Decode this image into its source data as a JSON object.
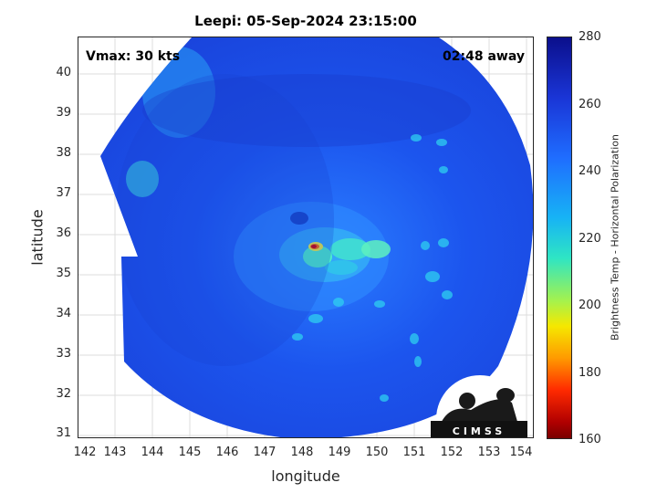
{
  "title": "Leepi: 05-Sep-2024 23:15:00",
  "vmax_label": "Vmax: 30 kts",
  "time_away_label": "02:48 away",
  "x_axis": {
    "label": "longitude",
    "ticks": [
      "142",
      "143",
      "144",
      "145",
      "146",
      "147",
      "148",
      "149",
      "150",
      "151",
      "152",
      "153",
      "154"
    ]
  },
  "y_axis": {
    "label": "latitude",
    "ticks": [
      "40",
      "39",
      "38",
      "37",
      "36",
      "35",
      "34",
      "33",
      "32",
      "31"
    ]
  },
  "colorbar": {
    "label": "Brightness Temp - Horizontal Polarization",
    "ticks": [
      "280",
      "260",
      "240",
      "220",
      "200",
      "180",
      "160"
    ],
    "range": [
      160,
      280
    ]
  },
  "logo": {
    "text": "CIMSS"
  },
  "map_extent": {
    "lon": [
      142,
      154
    ],
    "lat": [
      31,
      40.8
    ]
  },
  "storm_center": {
    "lon": 148.3,
    "lat": 35.7
  },
  "colors": {
    "warm_background": "#1f5cf0",
    "cold_core": "#e01010",
    "convection": "#2ee5c4"
  }
}
